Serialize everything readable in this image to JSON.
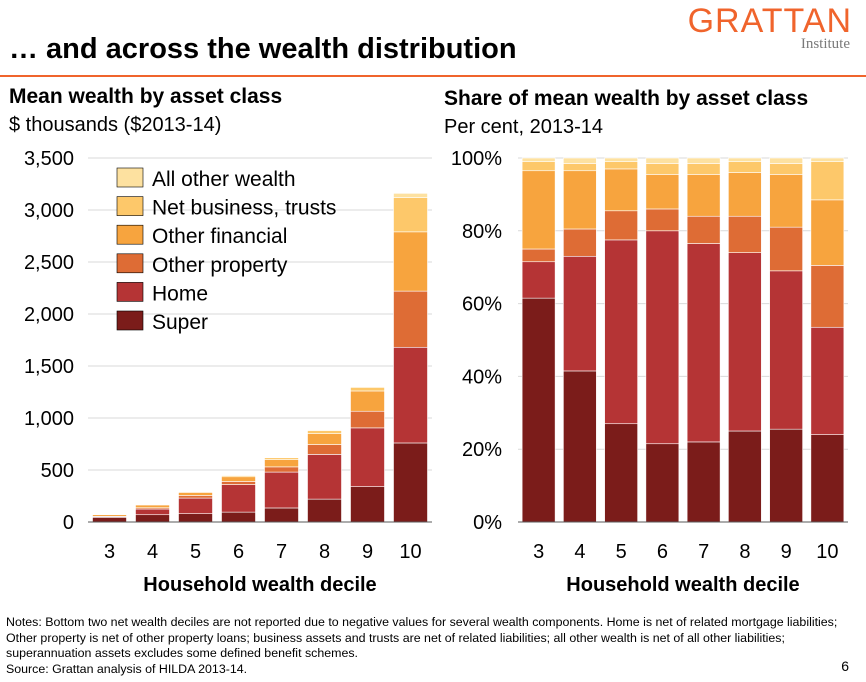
{
  "header": {
    "title": "… and across the wealth distribution",
    "logo_main": "GRATTAN",
    "logo_sub": "Institute"
  },
  "left_chart": {
    "title": "Mean wealth by asset class",
    "subtitle": "$ thousands ($2013-14)"
  },
  "right_chart": {
    "title": "Share of mean wealth by asset class",
    "subtitle": "Per cent, 2013-14"
  },
  "footer": {
    "notes": "Notes: Bottom two net wealth deciles are not reported due to negative values for several wealth components. Home is net of related mortgage liabilities; Other property is net of other property loans; business assets and trusts are net of related liabilities; all other wealth is net of all other liabilities; superannuation assets excludes some defined benefit schemes.",
    "source": "Source: Grattan analysis of HILDA 2013-14.",
    "page_number": "6"
  },
  "colors": {
    "super": "#7b1c1a",
    "home": "#b53435",
    "other_property": "#de6c35",
    "other_financial": "#f7a43e",
    "net_business": "#fdc86a",
    "all_other": "#fde1a0",
    "accent": "#f0642c"
  },
  "chart_data": [
    {
      "type": "bar",
      "stacked": true,
      "title": "Mean wealth by asset class",
      "subtitle": "$ thousands ($2013-14)",
      "xlabel": "Household wealth decile",
      "ylabel": "",
      "categories": [
        "3",
        "4",
        "5",
        "6",
        "7",
        "8",
        "9",
        "10"
      ],
      "ylim": [
        0,
        3500
      ],
      "yticks": [
        0,
        500,
        1000,
        1500,
        2000,
        2500,
        3000,
        3500
      ],
      "ytick_labels": [
        "0",
        "500",
        "1,000",
        "1,500",
        "2,000",
        "2,500",
        "3,000",
        "3,500"
      ],
      "legend_position": "top-left",
      "series": [
        {
          "name": "Super",
          "color": "#7b1c1a",
          "values": [
            45,
            70,
            80,
            95,
            135,
            220,
            340,
            760
          ]
        },
        {
          "name": "Home",
          "color": "#b53435",
          "values": [
            8,
            55,
            150,
            265,
            345,
            430,
            565,
            920
          ]
        },
        {
          "name": "Other property",
          "color": "#de6c35",
          "values": [
            2,
            12,
            25,
            30,
            50,
            95,
            160,
            540
          ]
        },
        {
          "name": "Other financial",
          "color": "#f7a43e",
          "values": [
            15,
            27,
            30,
            45,
            70,
            105,
            195,
            570
          ]
        },
        {
          "name": "Net business, trusts",
          "color": "#fdc86a",
          "values": [
            3,
            4,
            5,
            12,
            18,
            30,
            35,
            330
          ]
        },
        {
          "name": "All other wealth",
          "color": "#fde1a0",
          "values": [
            2,
            2,
            3,
            5,
            5,
            5,
            5,
            40
          ]
        }
      ]
    },
    {
      "type": "bar",
      "stacked": true,
      "title": "Share of mean wealth by asset class",
      "subtitle": "Per cent, 2013-14",
      "xlabel": "Household wealth decile",
      "ylabel": "",
      "categories": [
        "3",
        "4",
        "5",
        "6",
        "7",
        "8",
        "9",
        "10"
      ],
      "ylim": [
        0,
        100
      ],
      "yticks": [
        0,
        20,
        40,
        60,
        80,
        100
      ],
      "ytick_labels": [
        "0%",
        "20%",
        "40%",
        "60%",
        "80%",
        "100%"
      ],
      "series": [
        {
          "name": "Super",
          "color": "#7b1c1a",
          "values": [
            61.5,
            41.5,
            27,
            21.5,
            22,
            25,
            25.5,
            24
          ]
        },
        {
          "name": "Home",
          "color": "#b53435",
          "values": [
            10,
            31.5,
            50.5,
            58.5,
            54.5,
            49,
            43.5,
            29.5
          ]
        },
        {
          "name": "Other property",
          "color": "#de6c35",
          "values": [
            3.5,
            7.5,
            8,
            6,
            7.5,
            10,
            12,
            17
          ]
        },
        {
          "name": "Other financial",
          "color": "#f7a43e",
          "values": [
            21.5,
            16,
            11.5,
            9.5,
            11.5,
            12,
            14.5,
            18
          ]
        },
        {
          "name": "Net business, trusts",
          "color": "#fdc86a",
          "values": [
            2.5,
            2,
            2,
            3,
            3,
            3,
            3,
            10.5
          ]
        },
        {
          "name": "All other wealth",
          "color": "#fde1a0",
          "values": [
            1,
            1.5,
            1,
            1.5,
            1.5,
            1,
            1.5,
            1
          ]
        }
      ]
    }
  ]
}
